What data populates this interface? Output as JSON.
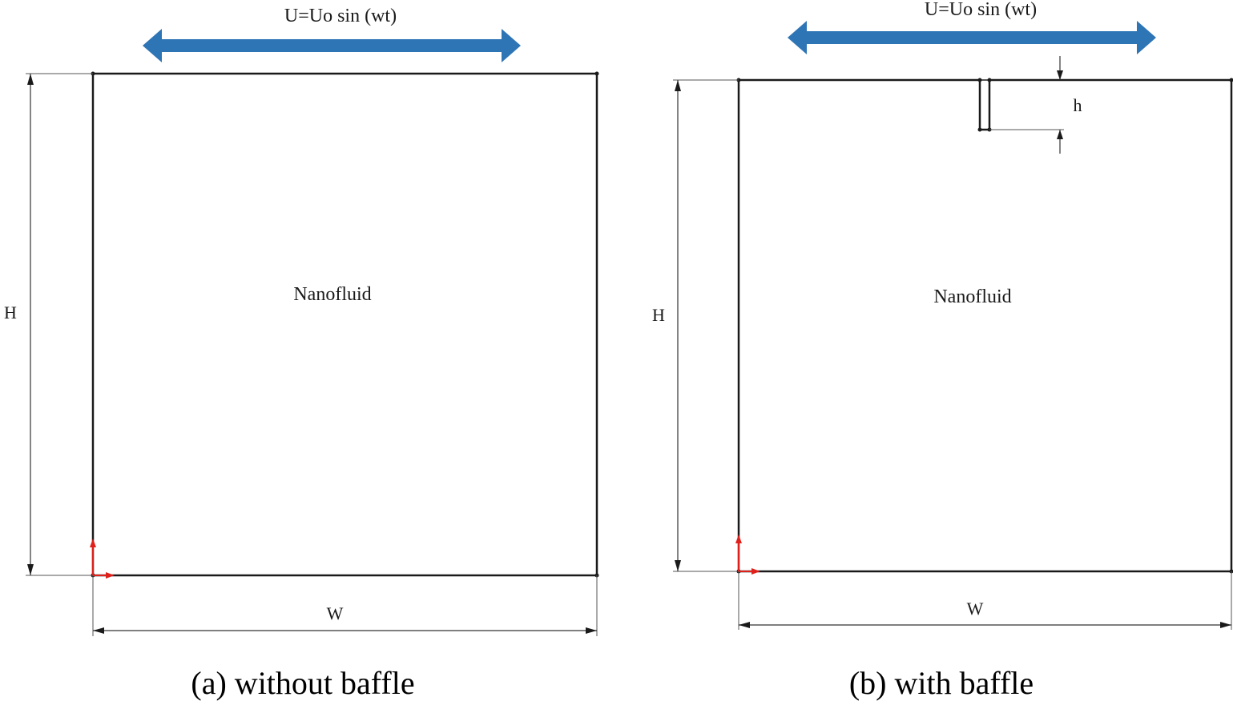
{
  "panel_a": {
    "velocity_label": "U=Uo sin (wt)",
    "fluid_label": "Nanofluid",
    "height_label": "H",
    "width_label": "W",
    "caption": "(a) without baffle"
  },
  "panel_b": {
    "velocity_label": "U=Uo sin (wt)",
    "fluid_label": "Nanofluid",
    "height_label": "H",
    "width_label": "W",
    "baffle_height_label": "h",
    "caption": "(b) with baffle"
  },
  "colors": {
    "arrow_blue": "#2e75b6",
    "axis_red": "#e0201b",
    "line": "#1a1a1a"
  }
}
